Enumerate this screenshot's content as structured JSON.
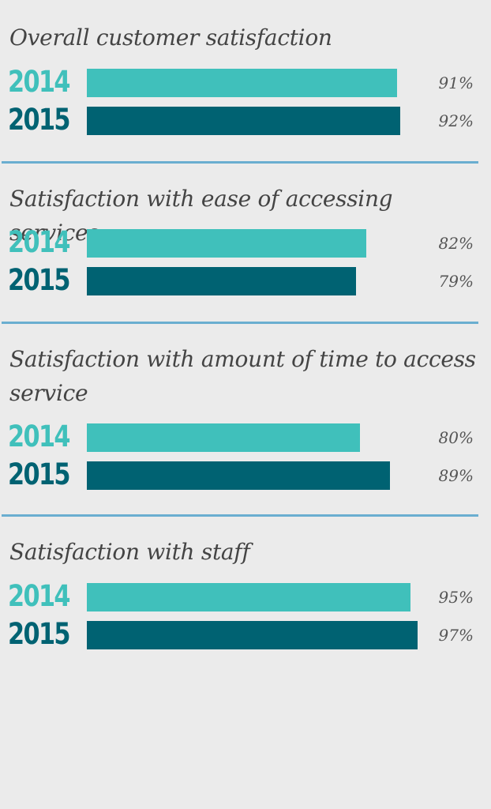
{
  "colors": {
    "y2014": "#40c0bb",
    "y2015": "#006272",
    "divider": "#6aaed0"
  },
  "chart_data": {
    "type": "bar",
    "orientation": "horizontal",
    "xlim": [
      0,
      100
    ],
    "unit": "%",
    "groups": [
      {
        "title": "Overall customer satisfaction",
        "series": [
          {
            "name": "2014",
            "value": 91,
            "label": "91%"
          },
          {
            "name": "2015",
            "value": 92,
            "label": "92%"
          }
        ]
      },
      {
        "title": "Satisfaction with ease of accessing services",
        "series": [
          {
            "name": "2014",
            "value": 82,
            "label": "82%"
          },
          {
            "name": "2015",
            "value": 79,
            "label": "79%"
          }
        ]
      },
      {
        "title": "Satisfaction with amount of time to access service",
        "series": [
          {
            "name": "2014",
            "value": 80,
            "label": "80%"
          },
          {
            "name": "2015",
            "value": 89,
            "label": "89%"
          }
        ]
      },
      {
        "title": "Satisfaction with staff",
        "series": [
          {
            "name": "2014",
            "value": 95,
            "label": "95%"
          },
          {
            "name": "2015",
            "value": 97,
            "label": "97%"
          }
        ]
      }
    ]
  }
}
